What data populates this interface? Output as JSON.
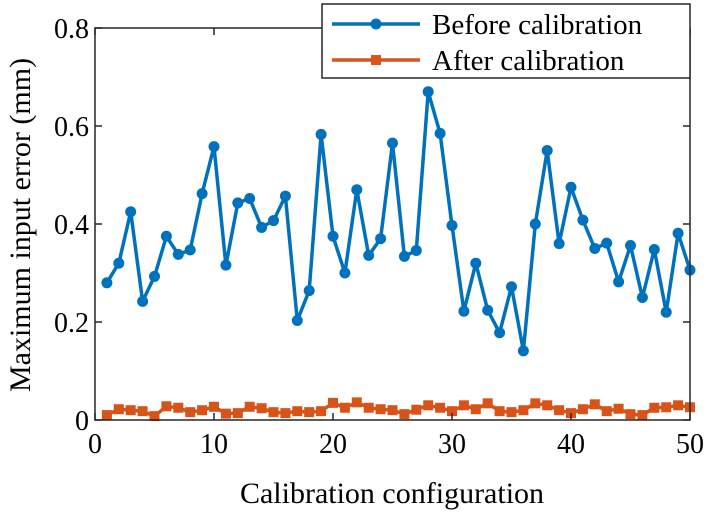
{
  "chart_data": {
    "type": "line",
    "xlabel": "Calibration configuration",
    "ylabel": "Maximum input error (mm)",
    "xlim": [
      0,
      50
    ],
    "ylim": [
      0,
      0.8
    ],
    "xticks": [
      0,
      10,
      20,
      30,
      40,
      50
    ],
    "xtick_labels": [
      "0",
      "10",
      "20",
      "30",
      "40",
      "50"
    ],
    "yticks": [
      0,
      0.2,
      0.4,
      0.6,
      0.8
    ],
    "ytick_labels": [
      "0",
      "0.2",
      "0.4",
      "0.6",
      "0.8"
    ],
    "grid": false,
    "legend_position": "top-right",
    "x": [
      1,
      2,
      3,
      4,
      5,
      6,
      7,
      8,
      9,
      10,
      11,
      12,
      13,
      14,
      15,
      16,
      17,
      18,
      19,
      20,
      21,
      22,
      23,
      24,
      25,
      26,
      27,
      28,
      29,
      30,
      31,
      32,
      33,
      34,
      35,
      36,
      37,
      38,
      39,
      40,
      41,
      42,
      43,
      44,
      45,
      46,
      47,
      48,
      49,
      50
    ],
    "series": [
      {
        "name": "Before calibration",
        "color": "#0072BD",
        "marker": "circle",
        "values": [
          0.28,
          0.32,
          0.425,
          0.242,
          0.293,
          0.375,
          0.338,
          0.347,
          0.462,
          0.558,
          0.316,
          0.443,
          0.452,
          0.393,
          0.407,
          0.457,
          0.203,
          0.264,
          0.583,
          0.375,
          0.3,
          0.47,
          0.336,
          0.37,
          0.565,
          0.334,
          0.346,
          0.67,
          0.585,
          0.397,
          0.222,
          0.32,
          0.224,
          0.178,
          0.272,
          0.141,
          0.4,
          0.55,
          0.36,
          0.475,
          0.408,
          0.35,
          0.361,
          0.282,
          0.356,
          0.25,
          0.348,
          0.22,
          0.381,
          0.306
        ]
      },
      {
        "name": "After calibration",
        "color": "#D95319",
        "marker": "square",
        "values": [
          0.01,
          0.022,
          0.02,
          0.018,
          0.008,
          0.028,
          0.025,
          0.016,
          0.02,
          0.027,
          0.013,
          0.014,
          0.027,
          0.024,
          0.016,
          0.014,
          0.018,
          0.016,
          0.018,
          0.035,
          0.025,
          0.036,
          0.025,
          0.022,
          0.02,
          0.012,
          0.021,
          0.03,
          0.025,
          0.018,
          0.03,
          0.022,
          0.034,
          0.018,
          0.016,
          0.02,
          0.034,
          0.03,
          0.02,
          0.014,
          0.022,
          0.032,
          0.018,
          0.023,
          0.012,
          0.01,
          0.025,
          0.026,
          0.03,
          0.026
        ]
      }
    ]
  }
}
